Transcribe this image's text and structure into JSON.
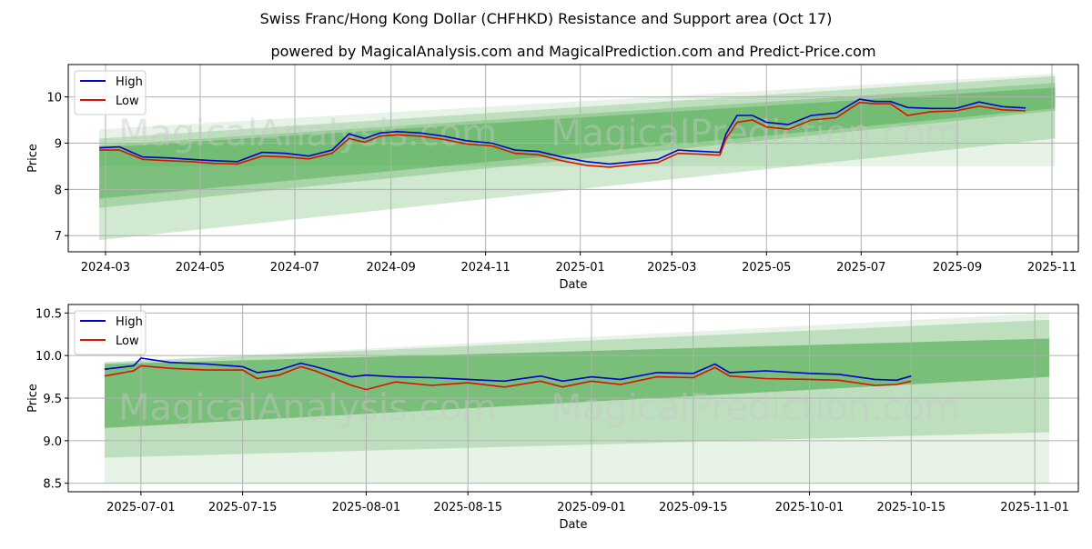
{
  "title": "Swiss Franc/Hong Kong Dollar (CHFHKD) Resistance and Support area (Oct 17)",
  "subtitle": "powered by MagicalAnalysis.com and MagicalPrediction.com and Predict-Price.com",
  "watermarks": [
    "MagicalAnalysis.com",
    "MagicalPrediction.com"
  ],
  "colors": {
    "high": "#0000cc",
    "low": "#dd1100",
    "band": "#2e9b2e",
    "grid": "#b0b0b0"
  },
  "chart_data": [
    {
      "type": "line",
      "xlabel": "Date",
      "ylabel": "Price",
      "xlim": [
        "2024-02-06",
        "2025-11-18"
      ],
      "ylim": [
        6.65,
        10.7
      ],
      "grid": true,
      "legend": "top-left",
      "x_ticks": [
        "2024-03",
        "2024-05",
        "2024-07",
        "2024-09",
        "2024-11",
        "2025-01",
        "2025-03",
        "2025-05",
        "2025-07",
        "2025-09",
        "2025-11"
      ],
      "y_ticks": [
        7,
        8,
        9,
        10
      ],
      "band_range": [
        "2024-02-26",
        "2025-11-03"
      ],
      "bands": [
        {
          "start": [
            9.3,
            8.5
          ],
          "end": [
            10.5,
            8.5
          ],
          "opacity": 0.12
        },
        {
          "start": [
            9.1,
            6.9
          ],
          "end": [
            10.45,
            9.1
          ],
          "opacity": 0.22
        },
        {
          "start": [
            8.95,
            7.6
          ],
          "end": [
            10.3,
            9.7
          ],
          "opacity": 0.25
        },
        {
          "start": [
            8.9,
            7.8
          ],
          "end": [
            10.2,
            9.75
          ],
          "opacity": 0.35
        }
      ],
      "series": [
        {
          "name": "High",
          "x": [
            "2024-02-26",
            "2024-03-10",
            "2024-03-25",
            "2024-04-10",
            "2024-04-25",
            "2024-05-10",
            "2024-05-25",
            "2024-06-10",
            "2024-06-25",
            "2024-07-10",
            "2024-07-25",
            "2024-08-05",
            "2024-08-15",
            "2024-08-25",
            "2024-09-05",
            "2024-09-20",
            "2024-10-05",
            "2024-10-20",
            "2024-11-05",
            "2024-11-20",
            "2024-12-05",
            "2024-12-20",
            "2025-01-05",
            "2025-01-20",
            "2025-02-05",
            "2025-02-20",
            "2025-03-05",
            "2025-03-20",
            "2025-04-01",
            "2025-04-05",
            "2025-04-12",
            "2025-04-22",
            "2025-05-01",
            "2025-05-15",
            "2025-05-30",
            "2025-06-15",
            "2025-06-30",
            "2025-07-10",
            "2025-07-20",
            "2025-07-31",
            "2025-08-15",
            "2025-08-31",
            "2025-09-15",
            "2025-09-30",
            "2025-10-15"
          ],
          "values": [
            8.9,
            8.92,
            8.7,
            8.68,
            8.65,
            8.62,
            8.6,
            8.8,
            8.78,
            8.72,
            8.85,
            9.2,
            9.1,
            9.22,
            9.25,
            9.22,
            9.15,
            9.05,
            9.0,
            8.85,
            8.82,
            8.7,
            8.6,
            8.55,
            8.6,
            8.65,
            8.85,
            8.82,
            8.8,
            9.2,
            9.6,
            9.6,
            9.45,
            9.4,
            9.6,
            9.65,
            9.95,
            9.9,
            9.9,
            9.77,
            9.75,
            9.75,
            9.89,
            9.79,
            9.76
          ]
        },
        {
          "name": "Low",
          "x": [
            "2024-02-26",
            "2024-03-10",
            "2024-03-25",
            "2024-04-10",
            "2024-04-25",
            "2024-05-10",
            "2024-05-25",
            "2024-06-10",
            "2024-06-25",
            "2024-07-10",
            "2024-07-25",
            "2024-08-05",
            "2024-08-15",
            "2024-08-25",
            "2024-09-05",
            "2024-09-20",
            "2024-10-05",
            "2024-10-20",
            "2024-11-05",
            "2024-11-20",
            "2024-12-05",
            "2024-12-20",
            "2025-01-05",
            "2025-01-20",
            "2025-02-05",
            "2025-02-20",
            "2025-03-05",
            "2025-03-20",
            "2025-04-01",
            "2025-04-05",
            "2025-04-12",
            "2025-04-22",
            "2025-05-01",
            "2025-05-15",
            "2025-05-30",
            "2025-06-15",
            "2025-06-30",
            "2025-07-10",
            "2025-07-20",
            "2025-07-31",
            "2025-08-15",
            "2025-08-31",
            "2025-09-15",
            "2025-09-30",
            "2025-10-15"
          ],
          "values": [
            8.85,
            8.85,
            8.65,
            8.62,
            8.6,
            8.56,
            8.55,
            8.72,
            8.7,
            8.66,
            8.78,
            9.1,
            9.02,
            9.15,
            9.18,
            9.15,
            9.08,
            8.98,
            8.94,
            8.78,
            8.75,
            8.62,
            8.52,
            8.48,
            8.54,
            8.58,
            8.78,
            8.76,
            8.74,
            9.1,
            9.45,
            9.5,
            9.35,
            9.3,
            9.5,
            9.55,
            9.88,
            9.85,
            9.85,
            9.6,
            9.68,
            9.7,
            9.8,
            9.72,
            9.7
          ]
        }
      ]
    },
    {
      "type": "line",
      "xlabel": "Date",
      "ylabel": "Price",
      "xlim": [
        "2025-06-21",
        "2025-11-07"
      ],
      "ylim": [
        8.4,
        10.6
      ],
      "grid": true,
      "legend": "top-left",
      "x_ticks": [
        "2025-07-01",
        "2025-07-15",
        "2025-08-01",
        "2025-08-15",
        "2025-09-01",
        "2025-09-15",
        "2025-10-01",
        "2025-10-15",
        "2025-11-01"
      ],
      "y_ticks": [
        8.5,
        9.0,
        9.5,
        10.0,
        10.5
      ],
      "band_range": [
        "2025-06-26",
        "2025-11-03"
      ],
      "bands": [
        {
          "start": [
            9.92,
            8.5
          ],
          "end": [
            10.5,
            8.5
          ],
          "opacity": 0.12
        },
        {
          "start": [
            9.92,
            8.8
          ],
          "end": [
            10.42,
            9.1
          ],
          "opacity": 0.22
        },
        {
          "start": [
            9.9,
            9.15
          ],
          "end": [
            10.2,
            9.75
          ],
          "opacity": 0.3
        },
        {
          "start": [
            9.9,
            9.15
          ],
          "end": [
            10.2,
            9.75
          ],
          "opacity": 0.25
        }
      ],
      "series": [
        {
          "name": "High",
          "x": [
            "2025-06-26",
            "2025-06-30",
            "2025-07-01",
            "2025-07-05",
            "2025-07-10",
            "2025-07-15",
            "2025-07-17",
            "2025-07-20",
            "2025-07-23",
            "2025-07-25",
            "2025-07-30",
            "2025-08-01",
            "2025-08-05",
            "2025-08-10",
            "2025-08-15",
            "2025-08-20",
            "2025-08-25",
            "2025-08-28",
            "2025-09-01",
            "2025-09-05",
            "2025-09-10",
            "2025-09-15",
            "2025-09-18",
            "2025-09-20",
            "2025-09-25",
            "2025-10-01",
            "2025-10-05",
            "2025-10-10",
            "2025-10-13",
            "2025-10-15"
          ],
          "values": [
            9.84,
            9.88,
            9.97,
            9.92,
            9.9,
            9.87,
            9.8,
            9.83,
            9.91,
            9.87,
            9.75,
            9.77,
            9.75,
            9.74,
            9.72,
            9.7,
            9.76,
            9.7,
            9.75,
            9.72,
            9.8,
            9.79,
            9.9,
            9.8,
            9.82,
            9.79,
            9.78,
            9.72,
            9.71,
            9.76
          ]
        },
        {
          "name": "Low",
          "x": [
            "2025-06-26",
            "2025-06-30",
            "2025-07-01",
            "2025-07-05",
            "2025-07-10",
            "2025-07-15",
            "2025-07-17",
            "2025-07-20",
            "2025-07-23",
            "2025-07-25",
            "2025-07-30",
            "2025-08-01",
            "2025-08-05",
            "2025-08-10",
            "2025-08-15",
            "2025-08-20",
            "2025-08-25",
            "2025-08-28",
            "2025-09-01",
            "2025-09-05",
            "2025-09-10",
            "2025-09-15",
            "2025-09-18",
            "2025-09-20",
            "2025-09-25",
            "2025-10-01",
            "2025-10-05",
            "2025-10-10",
            "2025-10-13",
            "2025-10-15"
          ],
          "values": [
            9.76,
            9.82,
            9.88,
            9.85,
            9.83,
            9.83,
            9.73,
            9.77,
            9.87,
            9.82,
            9.65,
            9.6,
            9.69,
            9.65,
            9.68,
            9.63,
            9.7,
            9.63,
            9.7,
            9.66,
            9.75,
            9.74,
            9.86,
            9.76,
            9.73,
            9.72,
            9.71,
            9.65,
            9.66,
            9.7
          ]
        }
      ]
    }
  ]
}
